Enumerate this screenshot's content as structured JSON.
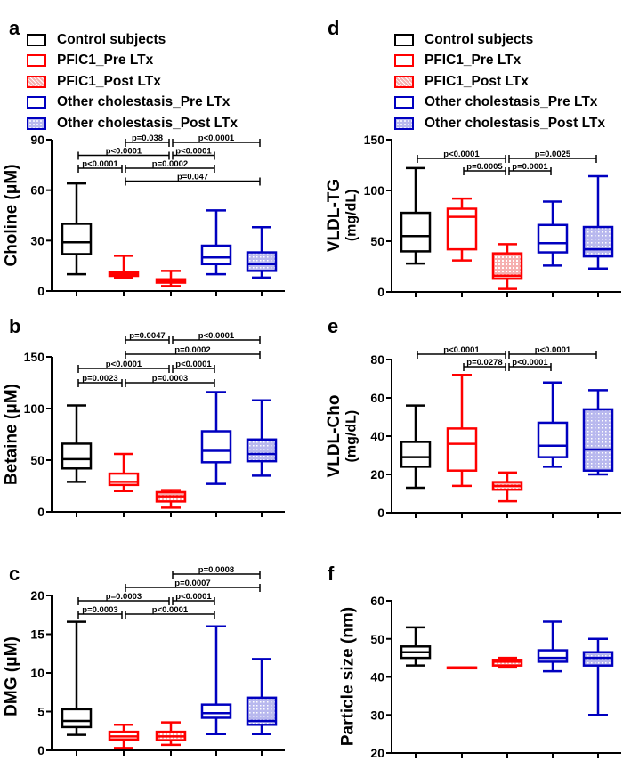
{
  "legend": [
    {
      "label": "Control subjects",
      "color": "#000000",
      "fill": "none"
    },
    {
      "label": "PFIC1_Pre LTx",
      "color": "#ff0000",
      "fill": "none"
    },
    {
      "label": "PFIC1_Post LTx",
      "color": "#ff0000",
      "fill": "pattern-red"
    },
    {
      "label": "Other cholestasis_Pre LTx",
      "color": "#0000c0",
      "fill": "none"
    },
    {
      "label": "Other cholestasis_Post LTx",
      "color": "#0000c0",
      "fill": "pattern-blue"
    }
  ],
  "chart_data": [
    {
      "panel": "a",
      "type": "box",
      "ylabel": "Choline (μM)",
      "ylabel2": "",
      "ylim": [
        0,
        90
      ],
      "yticks": [
        0,
        30,
        60,
        90
      ],
      "boxes": [
        [
          10,
          22,
          29,
          40,
          64
        ],
        [
          8,
          9,
          10,
          11,
          21
        ],
        [
          3,
          5,
          6,
          7,
          12
        ],
        [
          10,
          16,
          20,
          27,
          48
        ],
        [
          8,
          12,
          16,
          23,
          38
        ]
      ],
      "brackets": [
        {
          "from": 1,
          "to": 2,
          "label": "p=0.038",
          "level": 0
        },
        {
          "from": 2,
          "to": 4,
          "label": "p<0.0001",
          "level": 0
        },
        {
          "from": 0,
          "to": 2,
          "label": "p<0.0001",
          "level": 1
        },
        {
          "from": 2,
          "to": 3,
          "label": "p<0.0001",
          "level": 1
        },
        {
          "from": 0,
          "to": 1,
          "label": "p<0.0001",
          "level": 2
        },
        {
          "from": 1,
          "to": 3,
          "label": "p=0.0002",
          "level": 2
        },
        {
          "from": 1,
          "to": 4,
          "label": "p=0.047",
          "level": 3
        }
      ]
    },
    {
      "panel": "b",
      "type": "box",
      "ylabel": "Betaine (μM)",
      "ylabel2": "",
      "ylim": [
        0,
        150
      ],
      "yticks": [
        0,
        50,
        100,
        150
      ],
      "boxes": [
        [
          29,
          42,
          51,
          66,
          103
        ],
        [
          20,
          26,
          29,
          37,
          56
        ],
        [
          4,
          10,
          15,
          19,
          21
        ],
        [
          27,
          48,
          59,
          78,
          116
        ],
        [
          35,
          49,
          56,
          70,
          108
        ]
      ],
      "brackets": [
        {
          "from": 1,
          "to": 2,
          "label": "p=0.0047",
          "level": 0
        },
        {
          "from": 2,
          "to": 4,
          "label": "p<0.0001",
          "level": 0
        },
        {
          "from": 1,
          "to": 4,
          "label": "p=0.0002",
          "level": 1
        },
        {
          "from": 0,
          "to": 2,
          "label": "p<0.0001",
          "level": 2
        },
        {
          "from": 2,
          "to": 3,
          "label": "p<0.0001",
          "level": 2
        },
        {
          "from": 0,
          "to": 1,
          "label": "p=0.0023",
          "level": 3
        },
        {
          "from": 1,
          "to": 3,
          "label": "p=0.0003",
          "level": 3
        }
      ]
    },
    {
      "panel": "c",
      "type": "box",
      "ylabel": "DMG (μM)",
      "ylabel2": "",
      "ylim": [
        0,
        20
      ],
      "yticks": [
        0,
        5,
        10,
        15,
        20
      ],
      "boxes": [
        [
          2,
          3,
          3.8,
          5.3,
          16.6
        ],
        [
          0.3,
          1.4,
          1.8,
          2.4,
          3.3
        ],
        [
          0.7,
          1.3,
          1.8,
          2.4,
          3.6
        ],
        [
          2.1,
          4.2,
          4.8,
          5.9,
          16
        ],
        [
          2.1,
          3.3,
          3.8,
          6.8,
          11.8
        ]
      ],
      "brackets": [
        {
          "from": 2,
          "to": 4,
          "label": "p=0.0008",
          "level": 0
        },
        {
          "from": 1,
          "to": 4,
          "label": "p=0.0007",
          "level": 1
        },
        {
          "from": 0,
          "to": 2,
          "label": "p=0.0003",
          "level": 2
        },
        {
          "from": 2,
          "to": 3,
          "label": "p<0.0001",
          "level": 2
        },
        {
          "from": 0,
          "to": 1,
          "label": "p=0.0003",
          "level": 3
        },
        {
          "from": 1,
          "to": 3,
          "label": "p<0.0001",
          "level": 3
        }
      ]
    },
    {
      "panel": "d",
      "type": "box",
      "ylabel": "VLDL-TG",
      "ylabel2": "(mg/dL)",
      "ylim": [
        0,
        150
      ],
      "yticks": [
        0,
        50,
        100,
        150
      ],
      "boxes": [
        [
          28,
          40,
          55,
          78,
          122
        ],
        [
          31,
          42,
          74,
          82,
          92
        ],
        [
          3,
          13,
          16,
          38,
          47
        ],
        [
          26,
          39,
          48,
          66,
          89
        ],
        [
          23,
          35,
          42,
          64,
          114
        ]
      ],
      "brackets": [
        {
          "from": 0,
          "to": 2,
          "label": "p<0.0001",
          "level": 0
        },
        {
          "from": 2,
          "to": 4,
          "label": "p=0.0025",
          "level": 0
        },
        {
          "from": 1,
          "to": 2,
          "label": "p=0.0005",
          "level": 1
        },
        {
          "from": 2,
          "to": 3,
          "label": "p=0.0001",
          "level": 1
        }
      ]
    },
    {
      "panel": "e",
      "type": "box",
      "ylabel": "VLDL-Cho",
      "ylabel2": "(mg/dL)",
      "ylim": [
        0,
        80
      ],
      "yticks": [
        0,
        20,
        40,
        60,
        80
      ],
      "boxes": [
        [
          13,
          24,
          29,
          37,
          56
        ],
        [
          14,
          22,
          36,
          44,
          72
        ],
        [
          6,
          12,
          14,
          16,
          21
        ],
        [
          24,
          29,
          35,
          47,
          68
        ],
        [
          20,
          22,
          33,
          54,
          64
        ]
      ],
      "brackets": [
        {
          "from": 0,
          "to": 2,
          "label": "p<0.0001",
          "level": 0
        },
        {
          "from": 2,
          "to": 4,
          "label": "p<0.0001",
          "level": 0
        },
        {
          "from": 1,
          "to": 2,
          "label": "p=0.0278",
          "level": 1
        },
        {
          "from": 2,
          "to": 3,
          "label": "p<0.0001",
          "level": 1
        }
      ]
    },
    {
      "panel": "f",
      "type": "box",
      "ylabel": "Particle size (nm)",
      "ylabel2": "",
      "ylim": [
        20,
        60
      ],
      "yticks": [
        20,
        30,
        40,
        50,
        60
      ],
      "boxes": [
        [
          43,
          45,
          46.5,
          48,
          53
        ],
        [
          42.5,
          42.5,
          42.5,
          42.5,
          42.5
        ],
        [
          42.5,
          43,
          44,
          44.5,
          45
        ],
        [
          41.5,
          44,
          45,
          47,
          54.5
        ],
        [
          30,
          43,
          45,
          46.5,
          50
        ]
      ],
      "brackets": []
    }
  ]
}
